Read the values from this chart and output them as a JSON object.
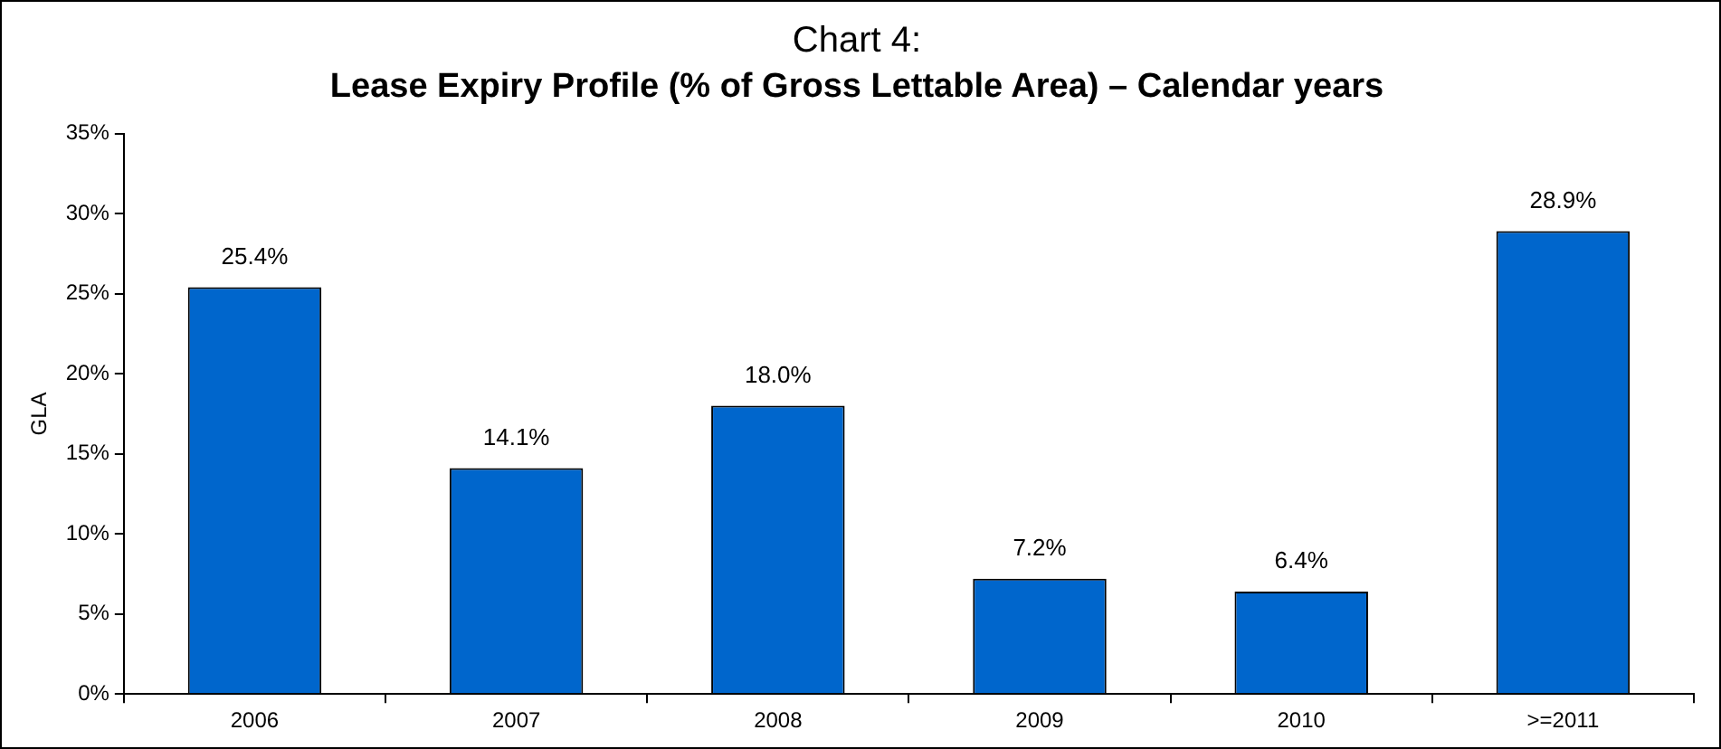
{
  "chart_data": {
    "type": "bar",
    "title": "Chart 4:",
    "subtitle": "Lease Expiry Profile (% of Gross Lettable Area) – Calendar years",
    "ylabel": "GLA",
    "categories": [
      "2006",
      "2007",
      "2008",
      "2009",
      "2010",
      ">=2011"
    ],
    "values": [
      25.4,
      14.1,
      18.0,
      7.2,
      6.4,
      28.9
    ],
    "value_labels": [
      "25.4%",
      "14.1%",
      "18.0%",
      "7.2%",
      "6.4%",
      "28.9%"
    ],
    "color": "#0066cc",
    "ylim": [
      0,
      35
    ],
    "yticks": [
      {
        "value": 0,
        "label": "0%"
      },
      {
        "value": 5,
        "label": "5%"
      },
      {
        "value": 10,
        "label": "10%"
      },
      {
        "value": 15,
        "label": "15%"
      },
      {
        "value": 20,
        "label": "20%"
      },
      {
        "value": 25,
        "label": "25%"
      },
      {
        "value": 30,
        "label": "30%"
      },
      {
        "value": 35,
        "label": "35%"
      }
    ],
    "grid": false,
    "legend": false
  }
}
